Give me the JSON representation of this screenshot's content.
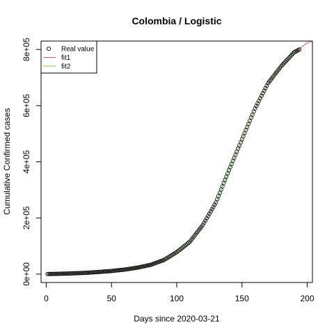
{
  "chart_data": {
    "type": "scatter",
    "title": "Colombia / Logistic",
    "xlabel": "Days since 2020-03-21",
    "ylabel": "Cumulative Confirmed cases",
    "xlim": [
      -4,
      204
    ],
    "ylim": [
      -30000,
      830000
    ],
    "x_ticks": [
      0,
      50,
      100,
      150,
      200
    ],
    "x_tick_labels": [
      "0",
      "50",
      "100",
      "150",
      "200"
    ],
    "y_ticks": [
      0,
      200000,
      400000,
      600000,
      800000
    ],
    "y_tick_labels": [
      "0e+00",
      "2e+05",
      "4e+05",
      "6e+05",
      "8e+05"
    ],
    "legend": {
      "placement": "top-left",
      "entries": [
        {
          "label": "Real value",
          "symbol": "circle",
          "color": "#000000"
        },
        {
          "label": "fit1",
          "symbol": "line",
          "color": "#DF536B"
        },
        {
          "label": "fit2",
          "symbol": "line",
          "color": "#61D04F"
        }
      ]
    },
    "series": [
      {
        "name": "Real value",
        "kind": "points",
        "color": "#000000",
        "x": [
          1,
          10,
          20,
          30,
          40,
          50,
          60,
          70,
          80,
          90,
          100,
          110,
          120,
          130,
          140,
          150,
          160,
          170,
          180,
          190,
          194
        ],
        "y": [
          200,
          1000,
          2500,
          4500,
          7500,
          11000,
          16000,
          23000,
          33000,
          50000,
          78000,
          115000,
          175000,
          255000,
          370000,
          480000,
          590000,
          680000,
          740000,
          790000,
          800000
        ]
      },
      {
        "name": "fit1",
        "kind": "line",
        "color": "#DF536B",
        "x": [
          1,
          10,
          20,
          30,
          40,
          50,
          60,
          70,
          80,
          90,
          100,
          110,
          120,
          130,
          140,
          150,
          160,
          170,
          180,
          190,
          200,
          204
        ],
        "y": [
          200,
          1000,
          2500,
          4500,
          7500,
          11000,
          16000,
          23000,
          33000,
          50000,
          78000,
          115000,
          175000,
          255000,
          370000,
          480000,
          590000,
          680000,
          740000,
          790000,
          823000,
          830000
        ]
      },
      {
        "name": "fit2",
        "kind": "line",
        "color": "#61D04F",
        "x": [
          1,
          10,
          20,
          30,
          40,
          50,
          60,
          70,
          80,
          90,
          100,
          110,
          120,
          130,
          140,
          150,
          160,
          170,
          180,
          190,
          194
        ],
        "y": [
          200,
          1000,
          2500,
          4500,
          7500,
          11000,
          16000,
          23000,
          33000,
          50000,
          78000,
          115000,
          175000,
          255000,
          370000,
          480000,
          590000,
          680000,
          740000,
          790000,
          800000
        ]
      }
    ]
  }
}
